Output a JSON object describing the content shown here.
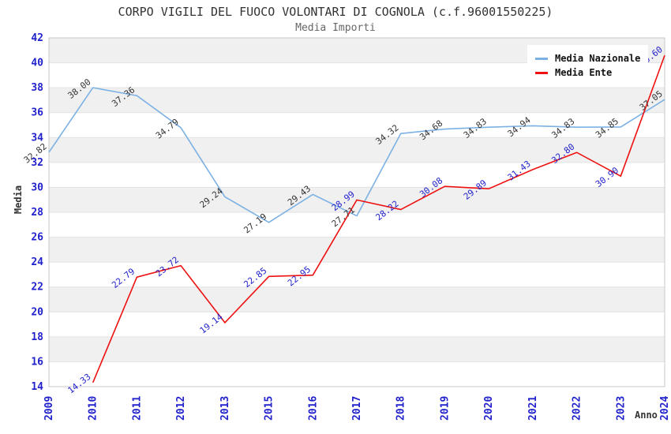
{
  "header": {
    "title": "CORPO VIGILI DEL FUOCO VOLONTARI DI COGNOLA (c.f.96001550225)",
    "subtitle": "Media Importi"
  },
  "chart_data": {
    "type": "line",
    "title": "CORPO VIGILI DEL FUOCO VOLONTARI DI COGNOLA (c.f.96001550225)",
    "subtitle": "Media Importi",
    "xlabel": "Anno",
    "ylabel": "Media",
    "categories": [
      "2009",
      "2010",
      "2011",
      "2012",
      "2013",
      "2015",
      "2016",
      "2017",
      "2018",
      "2019",
      "2020",
      "2021",
      "2022",
      "2023",
      "2024"
    ],
    "series": [
      {
        "name": "Media Nazionale",
        "color": "#7cb1e4",
        "label_color": "#333333",
        "values": [
          32.82,
          38.0,
          37.36,
          34.79,
          29.24,
          27.19,
          29.43,
          27.71,
          34.32,
          34.68,
          34.83,
          34.94,
          34.83,
          34.85,
          37.05
        ]
      },
      {
        "name": "Media Ente",
        "color": "#ee1111",
        "label_color": "#2222cc",
        "values": [
          null,
          14.33,
          22.79,
          23.72,
          19.14,
          22.85,
          22.95,
          28.99,
          28.22,
          30.08,
          29.89,
          31.43,
          32.8,
          30.9,
          40.6
        ]
      }
    ],
    "ylim": [
      14,
      42
    ],
    "ytick_step": 2,
    "grid": "horizontal-bands",
    "legend_position": "top-right",
    "colors": {
      "axis_text": "#2222cc",
      "band_gray": "#f0f0f0",
      "band_white": "#ffffff",
      "grid_line": "#e2e2e2",
      "plot_border": "#c9c9c9"
    }
  }
}
